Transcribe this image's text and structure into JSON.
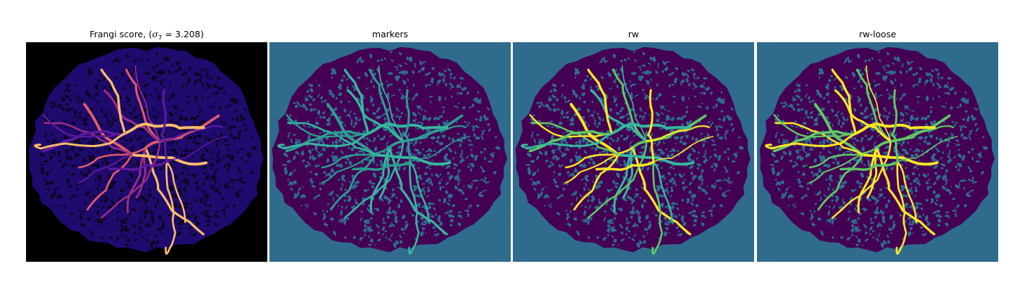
{
  "figure": {
    "panels": [
      {
        "title_prefix": "Frangi score, (",
        "title_sigma": "σ",
        "title_sigma_sub": "7",
        "title_suffix": " = 3.208)",
        "background": "#000000",
        "tissue": "#1f0a6e",
        "texture": "#0b0620",
        "vessel_colors": [
          "#5c1a9e",
          "#9b2d86",
          "#e05a6a",
          "#fdbb6b"
        ]
      },
      {
        "title": "markers",
        "background": "#2f6b8d",
        "tissue": "#440154",
        "texture": "#2f6b8d",
        "vessel_colors": [
          "#2a9d8f",
          "#35b89e"
        ]
      },
      {
        "title": "rw",
        "background": "#2f6b8d",
        "tissue": "#440154",
        "texture": "#2f6b8d",
        "vessel_colors": [
          "#35b89e",
          "#5ec962",
          "#fde725"
        ]
      },
      {
        "title": "rw-loose",
        "background": "#2f6b8d",
        "tissue": "#440154",
        "texture": "#2f6b8d",
        "vessel_colors": [
          "#5ec962",
          "#fde725"
        ]
      }
    ]
  }
}
